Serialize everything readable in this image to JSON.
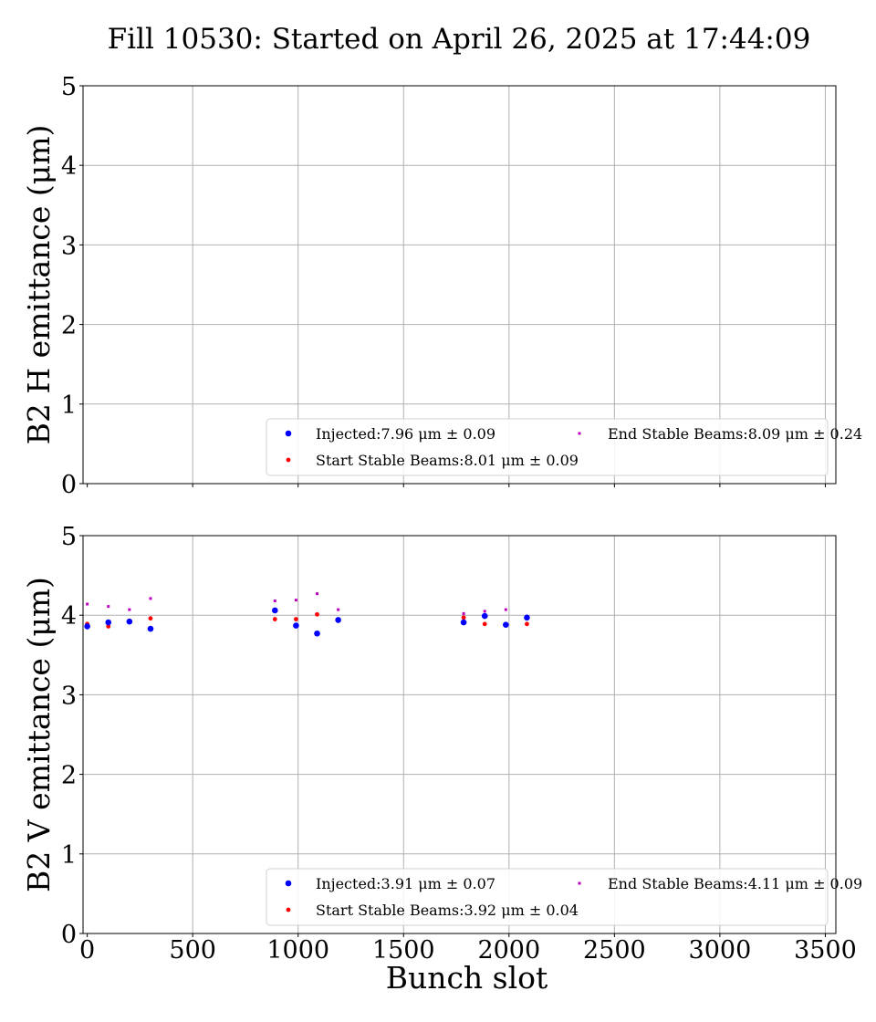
{
  "title": "Fill 10530: Started on April 26, 2025 at 17:44:09",
  "colors": {
    "injected": "#0000ff",
    "start_stable": "#ff0000",
    "end_stable": "#bf00bf",
    "grid": "#b0b0b0"
  },
  "chart_data": [
    {
      "type": "scatter",
      "ylabel": "B2 H emittance (μm)",
      "xlabel": "",
      "xlim": [
        -20,
        3550
      ],
      "ylim": [
        0,
        5
      ],
      "xticks": [
        0,
        500,
        1000,
        1500,
        2000,
        2500,
        3000,
        3500
      ],
      "yticks": [
        0,
        1,
        2,
        3,
        4,
        5
      ],
      "show_xtick_labels": false,
      "grid": true,
      "legend_placement": "lower-right",
      "series": [
        {
          "name": "Injected:7.96 μm ± 0.09",
          "key": "injected",
          "x": [],
          "y": []
        },
        {
          "name": "Start Stable Beams:8.01 μm ± 0.09",
          "key": "start_stable",
          "x": [],
          "y": []
        },
        {
          "name": "End Stable Beams:8.09 μm ± 0.24",
          "key": "end_stable",
          "x": [],
          "y": []
        }
      ]
    },
    {
      "type": "scatter",
      "ylabel": "B2 V emittance (μm)",
      "xlabel": "Bunch slot",
      "xlim": [
        -20,
        3550
      ],
      "ylim": [
        0,
        5
      ],
      "xticks": [
        0,
        500,
        1000,
        1500,
        2000,
        2500,
        3000,
        3500
      ],
      "yticks": [
        0,
        1,
        2,
        3,
        4,
        5
      ],
      "show_xtick_labels": true,
      "grid": true,
      "legend_placement": "lower-right",
      "series": [
        {
          "name": "Injected:3.91 μm ± 0.07",
          "key": "injected",
          "x": [
            0,
            100,
            200,
            300,
            890,
            990,
            1090,
            1190,
            1785,
            1885,
            1985,
            2085
          ],
          "y": [
            3.86,
            3.91,
            3.92,
            3.83,
            4.06,
            3.87,
            3.77,
            3.94,
            3.91,
            3.99,
            3.88,
            3.97
          ]
        },
        {
          "name": "Start Stable Beams:3.92 μm ± 0.04",
          "key": "start_stable",
          "x": [
            0,
            100,
            200,
            300,
            890,
            990,
            1090,
            1190,
            1785,
            1885,
            1985,
            2085
          ],
          "y": [
            3.89,
            3.86,
            3.93,
            3.96,
            3.95,
            3.95,
            4.01,
            3.93,
            3.97,
            3.89,
            3.88,
            3.89
          ]
        },
        {
          "name": "End Stable Beams:4.11 μm ± 0.09",
          "key": "end_stable",
          "x": [
            0,
            100,
            200,
            300,
            890,
            990,
            1090,
            1190,
            1785,
            1885,
            1985,
            2085
          ],
          "y": [
            4.14,
            4.11,
            4.07,
            4.21,
            4.18,
            4.19,
            4.27,
            4.07,
            4.02,
            4.05,
            4.07,
            3.96
          ]
        }
      ]
    }
  ]
}
